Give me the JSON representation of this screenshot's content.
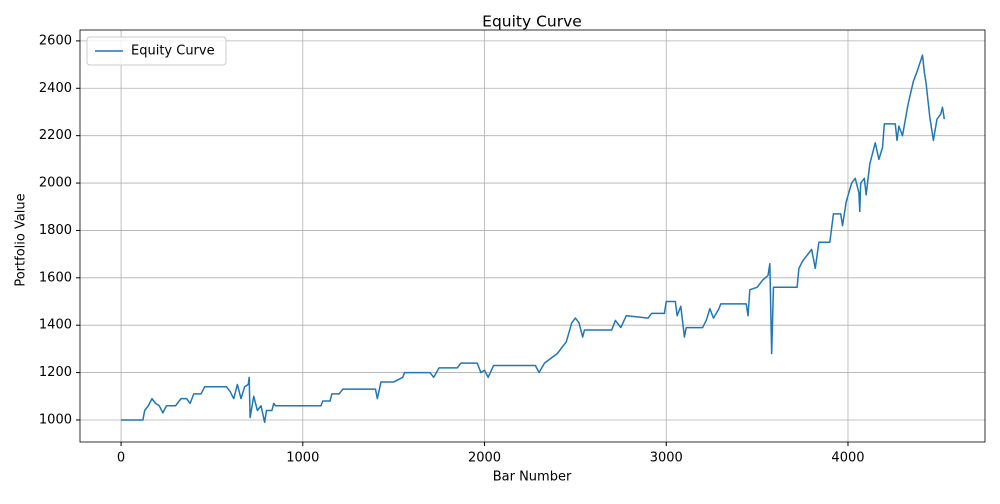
{
  "chart_data": {
    "type": "line",
    "title": "Equity Curve",
    "xlabel": "Bar Number",
    "ylabel": "Portfolio Value",
    "x": [
      0,
      120,
      130,
      150,
      170,
      190,
      210,
      230,
      250,
      300,
      330,
      360,
      380,
      400,
      440,
      460,
      580,
      600,
      620,
      640,
      660,
      680,
      700,
      705,
      710,
      730,
      750,
      770,
      790,
      800,
      830,
      840,
      850,
      1000,
      1100,
      1110,
      1150,
      1160,
      1200,
      1220,
      1400,
      1410,
      1430,
      1500,
      1550,
      1560,
      1700,
      1720,
      1750,
      1850,
      1870,
      1960,
      1980,
      2000,
      2020,
      2050,
      2280,
      2300,
      2330,
      2400,
      2450,
      2480,
      2500,
      2520,
      2540,
      2550,
      2700,
      2720,
      2750,
      2780,
      2900,
      2920,
      2990,
      3000,
      3050,
      3060,
      3080,
      3100,
      3110,
      3200,
      3220,
      3240,
      3260,
      3290,
      3300,
      3440,
      3450,
      3460,
      3500,
      3530,
      3560,
      3570,
      3580,
      3590,
      3720,
      3730,
      3750,
      3780,
      3800,
      3820,
      3840,
      3900,
      3920,
      3960,
      3970,
      3990,
      4020,
      4040,
      4060,
      4065,
      4070,
      4090,
      4100,
      4120,
      4150,
      4170,
      4190,
      4200,
      4260,
      4270,
      4280,
      4300,
      4330,
      4360,
      4380,
      4410,
      4420,
      4430,
      4450,
      4470,
      4490,
      4510,
      4520,
      4530
    ],
    "series": [
      {
        "name": "Equity Curve",
        "color": "#1f77b4",
        "values": [
          1000,
          1000,
          1040,
          1060,
          1090,
          1070,
          1060,
          1030,
          1060,
          1060,
          1090,
          1090,
          1070,
          1110,
          1110,
          1140,
          1140,
          1120,
          1090,
          1150,
          1090,
          1140,
          1150,
          1180,
          1010,
          1100,
          1040,
          1060,
          990,
          1040,
          1040,
          1070,
          1060,
          1060,
          1060,
          1080,
          1080,
          1110,
          1110,
          1130,
          1130,
          1090,
          1160,
          1160,
          1180,
          1200,
          1200,
          1180,
          1220,
          1220,
          1240,
          1240,
          1200,
          1210,
          1180,
          1230,
          1230,
          1200,
          1240,
          1280,
          1330,
          1410,
          1430,
          1410,
          1350,
          1380,
          1380,
          1420,
          1390,
          1440,
          1430,
          1450,
          1450,
          1500,
          1500,
          1440,
          1480,
          1350,
          1390,
          1390,
          1420,
          1470,
          1430,
          1470,
          1490,
          1490,
          1440,
          1550,
          1560,
          1590,
          1610,
          1660,
          1280,
          1560,
          1560,
          1640,
          1670,
          1700,
          1720,
          1640,
          1750,
          1750,
          1870,
          1870,
          1820,
          1920,
          2000,
          2020,
          1960,
          1880,
          2000,
          2020,
          1950,
          2080,
          2170,
          2100,
          2150,
          2250,
          2250,
          2180,
          2240,
          2200,
          2330,
          2430,
          2470,
          2540,
          2470,
          2420,
          2280,
          2180,
          2270,
          2290,
          2320,
          2270
        ]
      }
    ],
    "xlim": [
      -226,
      4754
    ],
    "ylim": [
      907,
      2646
    ],
    "xticks": [
      0,
      1000,
      2000,
      3000,
      4000
    ],
    "yticks": [
      1000,
      1200,
      1400,
      1600,
      1800,
      2000,
      2200,
      2400,
      2600
    ],
    "grid": true,
    "legend": "upper left"
  }
}
